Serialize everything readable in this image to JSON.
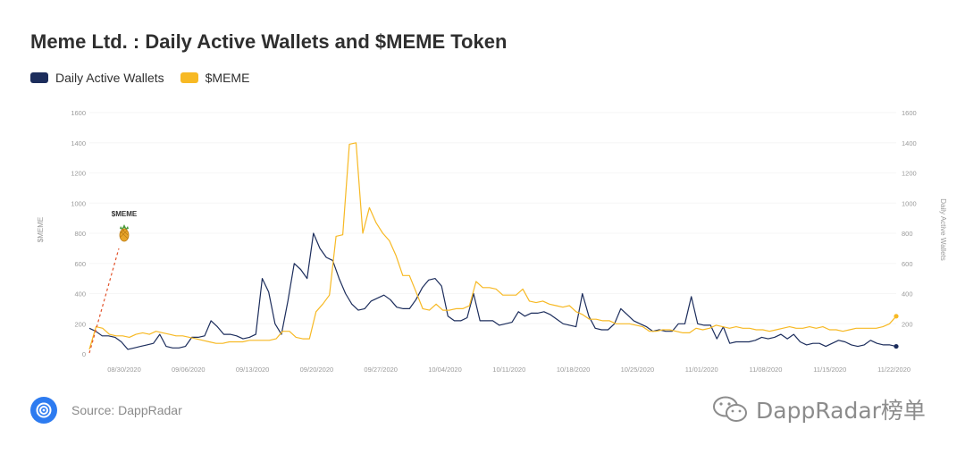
{
  "title": "Meme Ltd. : Daily Active Wallets and $MEME Token",
  "legend": [
    {
      "label": "Daily Active Wallets",
      "color": "#1c2d5c"
    },
    {
      "label": "$MEME",
      "color": "#f7b924"
    }
  ],
  "source": "Source: DappRadar",
  "watermark": "DappRadar榜单",
  "chart_data": {
    "type": "line",
    "x_tick_labels": [
      "08/30/2020",
      "09/06/2020",
      "09/13/2020",
      "09/20/2020",
      "09/27/2020",
      "10/04/2020",
      "10/11/2020",
      "10/18/2020",
      "10/25/2020",
      "11/01/2020",
      "11/08/2020",
      "11/15/2020",
      "11/22/2020"
    ],
    "x_range": [
      "08/25/2020",
      "11/22/2020"
    ],
    "y_left": {
      "label": "$MEME",
      "ticks": [
        0,
        200,
        400,
        600,
        800,
        1000,
        1200,
        1400,
        1600
      ],
      "range": [
        0,
        1600
      ]
    },
    "y_right": {
      "label": "Daily Active Wallets",
      "ticks": [
        200,
        400,
        600,
        800,
        1000,
        1200,
        1400,
        1600
      ],
      "range": [
        0,
        1600
      ]
    },
    "grid": false,
    "legend_position": "top-left",
    "annotation": {
      "label": "$MEME",
      "icon": "pineapple-icon"
    },
    "series": [
      {
        "name": "Daily Active Wallets",
        "color": "#1c2d5c",
        "values": [
          170,
          150,
          120,
          120,
          110,
          80,
          30,
          40,
          50,
          60,
          70,
          130,
          50,
          40,
          40,
          50,
          110,
          110,
          120,
          220,
          180,
          130,
          130,
          120,
          100,
          110,
          130,
          500,
          410,
          200,
          130,
          350,
          600,
          560,
          500,
          800,
          700,
          640,
          620,
          500,
          400,
          330,
          290,
          300,
          350,
          370,
          390,
          360,
          310,
          300,
          300,
          360,
          440,
          490,
          500,
          450,
          250,
          220,
          220,
          240,
          400,
          220,
          220,
          220,
          190,
          200,
          210,
          280,
          250,
          270,
          270,
          280,
          260,
          230,
          200,
          190,
          180,
          400,
          250,
          170,
          160,
          160,
          200,
          300,
          260,
          220,
          200,
          180,
          150,
          160,
          150,
          150,
          200,
          200,
          380,
          200,
          190,
          190,
          100,
          180,
          70,
          80,
          80,
          80,
          90,
          110,
          100,
          110,
          130,
          100,
          130,
          80,
          60,
          70,
          70,
          50,
          70,
          90,
          80,
          60,
          50,
          60,
          90,
          70,
          60,
          60,
          50
        ]
      },
      {
        "name": "$MEME",
        "color": "#f7b924",
        "values": [
          30,
          180,
          170,
          130,
          120,
          120,
          110,
          130,
          140,
          130,
          150,
          140,
          130,
          120,
          120,
          110,
          100,
          90,
          80,
          70,
          70,
          80,
          80,
          80,
          90,
          90,
          90,
          90,
          100,
          150,
          150,
          110,
          100,
          100,
          280,
          330,
          390,
          780,
          790,
          1390,
          1400,
          800,
          970,
          870,
          800,
          750,
          650,
          520,
          520,
          410,
          300,
          290,
          330,
          290,
          290,
          300,
          300,
          320,
          480,
          440,
          440,
          430,
          390,
          390,
          390,
          430,
          350,
          340,
          350,
          330,
          320,
          310,
          320,
          280,
          260,
          230,
          230,
          220,
          220,
          200,
          200,
          200,
          190,
          180,
          150,
          150,
          160,
          160,
          150,
          140,
          140,
          170,
          160,
          170,
          190,
          180,
          170,
          180,
          170,
          170,
          160,
          160,
          150,
          160,
          170,
          180,
          170,
          170,
          180,
          170,
          180,
          160,
          160,
          150,
          160,
          170,
          170,
          170,
          170,
          180,
          200,
          250
        ]
      }
    ]
  }
}
